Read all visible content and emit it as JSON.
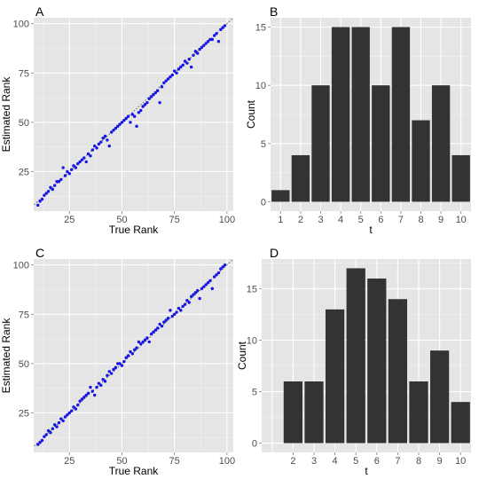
{
  "colors": {
    "panel_bg": "#e5e5e5",
    "grid_major": "#ffffff",
    "grid_minor": "#f2f2f2",
    "point": "#1515e6",
    "bar": "#333333",
    "diagonal": "#555555"
  },
  "chart_data": [
    {
      "letter": "A",
      "type": "scatter",
      "xlabel": "True Rank",
      "ylabel": "Estimated Rank",
      "xlim": [
        8,
        103
      ],
      "ylim": [
        5,
        103
      ],
      "xticks": [
        25,
        50,
        75,
        100
      ],
      "yticks": [
        25,
        50,
        75,
        100
      ],
      "diagonal": true,
      "grid": true,
      "points": [
        [
          10,
          8
        ],
        [
          11,
          10
        ],
        [
          12,
          11
        ],
        [
          13,
          13
        ],
        [
          14,
          14
        ],
        [
          15,
          15
        ],
        [
          16,
          17
        ],
        [
          17,
          16
        ],
        [
          18,
          18
        ],
        [
          19,
          20
        ],
        [
          20,
          20
        ],
        [
          21,
          21
        ],
        [
          22,
          27
        ],
        [
          23,
          23
        ],
        [
          24,
          25
        ],
        [
          25,
          24
        ],
        [
          26,
          26
        ],
        [
          27,
          28
        ],
        [
          28,
          27
        ],
        [
          29,
          29
        ],
        [
          30,
          30
        ],
        [
          31,
          31
        ],
        [
          32,
          32
        ],
        [
          33,
          30
        ],
        [
          34,
          34
        ],
        [
          35,
          33
        ],
        [
          36,
          36
        ],
        [
          37,
          38
        ],
        [
          38,
          37
        ],
        [
          39,
          39
        ],
        [
          40,
          40
        ],
        [
          41,
          42
        ],
        [
          42,
          43
        ],
        [
          43,
          41
        ],
        [
          44,
          38
        ],
        [
          45,
          45
        ],
        [
          46,
          46
        ],
        [
          47,
          47
        ],
        [
          48,
          48
        ],
        [
          49,
          49
        ],
        [
          50,
          50
        ],
        [
          51,
          51
        ],
        [
          52,
          52
        ],
        [
          53,
          53
        ],
        [
          54,
          50
        ],
        [
          55,
          54
        ],
        [
          56,
          53
        ],
        [
          57,
          48
        ],
        [
          58,
          55
        ],
        [
          59,
          56
        ],
        [
          60,
          58
        ],
        [
          61,
          59
        ],
        [
          62,
          60
        ],
        [
          63,
          62
        ],
        [
          64,
          63
        ],
        [
          65,
          64
        ],
        [
          66,
          65
        ],
        [
          67,
          66
        ],
        [
          68,
          60
        ],
        [
          69,
          68
        ],
        [
          70,
          70
        ],
        [
          71,
          71
        ],
        [
          72,
          72
        ],
        [
          73,
          73
        ],
        [
          74,
          74
        ],
        [
          75,
          76
        ],
        [
          76,
          75
        ],
        [
          77,
          77
        ],
        [
          78,
          78
        ],
        [
          79,
          79
        ],
        [
          80,
          81
        ],
        [
          81,
          80
        ],
        [
          82,
          82
        ],
        [
          83,
          78
        ],
        [
          84,
          84
        ],
        [
          85,
          86
        ],
        [
          86,
          85
        ],
        [
          87,
          87
        ],
        [
          88,
          88
        ],
        [
          89,
          89
        ],
        [
          90,
          90
        ],
        [
          91,
          91
        ],
        [
          92,
          92
        ],
        [
          93,
          92
        ],
        [
          94,
          94
        ],
        [
          95,
          95
        ],
        [
          96,
          91
        ],
        [
          97,
          97
        ],
        [
          98,
          98
        ],
        [
          99,
          99
        ]
      ]
    },
    {
      "letter": "B",
      "type": "bar",
      "xlabel": "t",
      "ylabel": "Count",
      "categories": [
        "1",
        "2",
        "3",
        "4",
        "5",
        "6",
        "7",
        "8",
        "9",
        "10"
      ],
      "values": [
        1,
        4,
        10,
        15,
        15,
        10,
        15,
        7,
        10,
        4
      ],
      "ylim": [
        -0.8,
        15.8
      ],
      "yticks": [
        0,
        5,
        10,
        15
      ],
      "grid": true
    },
    {
      "letter": "C",
      "type": "scatter",
      "xlabel": "True Rank",
      "ylabel": "Estimated Rank",
      "xlim": [
        8,
        103
      ],
      "ylim": [
        5,
        103
      ],
      "xticks": [
        25,
        50,
        75,
        100
      ],
      "yticks": [
        25,
        50,
        75,
        100
      ],
      "diagonal": true,
      "grid": true,
      "points": [
        [
          10,
          9
        ],
        [
          11,
          10
        ],
        [
          12,
          11
        ],
        [
          13,
          13
        ],
        [
          14,
          14
        ],
        [
          15,
          16
        ],
        [
          16,
          15
        ],
        [
          17,
          17
        ],
        [
          18,
          19
        ],
        [
          19,
          18
        ],
        [
          20,
          20
        ],
        [
          21,
          22
        ],
        [
          22,
          21
        ],
        [
          23,
          23
        ],
        [
          24,
          24
        ],
        [
          25,
          25
        ],
        [
          26,
          26
        ],
        [
          27,
          28
        ],
        [
          28,
          27
        ],
        [
          29,
          29
        ],
        [
          30,
          31
        ],
        [
          31,
          32
        ],
        [
          32,
          33
        ],
        [
          33,
          34
        ],
        [
          34,
          35
        ],
        [
          35,
          38
        ],
        [
          36,
          36
        ],
        [
          37,
          34
        ],
        [
          38,
          38
        ],
        [
          39,
          40
        ],
        [
          40,
          39
        ],
        [
          41,
          42
        ],
        [
          42,
          41
        ],
        [
          43,
          44
        ],
        [
          44,
          46
        ],
        [
          45,
          45
        ],
        [
          46,
          47
        ],
        [
          47,
          48
        ],
        [
          48,
          50
        ],
        [
          49,
          50
        ],
        [
          50,
          49
        ],
        [
          51,
          51
        ],
        [
          52,
          53
        ],
        [
          53,
          54
        ],
        [
          54,
          56
        ],
        [
          55,
          55
        ],
        [
          56,
          57
        ],
        [
          57,
          58
        ],
        [
          58,
          61
        ],
        [
          59,
          60
        ],
        [
          60,
          61
        ],
        [
          61,
          62
        ],
        [
          62,
          63
        ],
        [
          63,
          61
        ],
        [
          64,
          65
        ],
        [
          65,
          66
        ],
        [
          66,
          67
        ],
        [
          67,
          68
        ],
        [
          68,
          70
        ],
        [
          69,
          69
        ],
        [
          70,
          71
        ],
        [
          71,
          72
        ],
        [
          72,
          73
        ],
        [
          73,
          77
        ],
        [
          74,
          74
        ],
        [
          75,
          75
        ],
        [
          76,
          76
        ],
        [
          77,
          78
        ],
        [
          78,
          77
        ],
        [
          79,
          79
        ],
        [
          80,
          80
        ],
        [
          81,
          82
        ],
        [
          82,
          81
        ],
        [
          83,
          84
        ],
        [
          84,
          85
        ],
        [
          85,
          86
        ],
        [
          86,
          87
        ],
        [
          87,
          83
        ],
        [
          88,
          88
        ],
        [
          89,
          89
        ],
        [
          90,
          90
        ],
        [
          91,
          91
        ],
        [
          92,
          92
        ],
        [
          93,
          88
        ],
        [
          94,
          94
        ],
        [
          95,
          95
        ],
        [
          96,
          96
        ],
        [
          97,
          98
        ],
        [
          98,
          99
        ],
        [
          99,
          100
        ]
      ]
    },
    {
      "letter": "D",
      "type": "bar",
      "xlabel": "t",
      "ylabel": "Count",
      "categories": [
        "1",
        "2",
        "3",
        "4",
        "5",
        "6",
        "7",
        "8",
        "9",
        "10"
      ],
      "tick_labels": [
        "",
        "2",
        "3",
        "4",
        "5",
        "6",
        "7",
        "8",
        "9",
        "10"
      ],
      "values": [
        0,
        6,
        6,
        13,
        17,
        16,
        14,
        6,
        9,
        4
      ],
      "ylim": [
        -0.9,
        17.9
      ],
      "yticks": [
        0,
        5,
        10,
        15
      ],
      "grid": true
    }
  ]
}
